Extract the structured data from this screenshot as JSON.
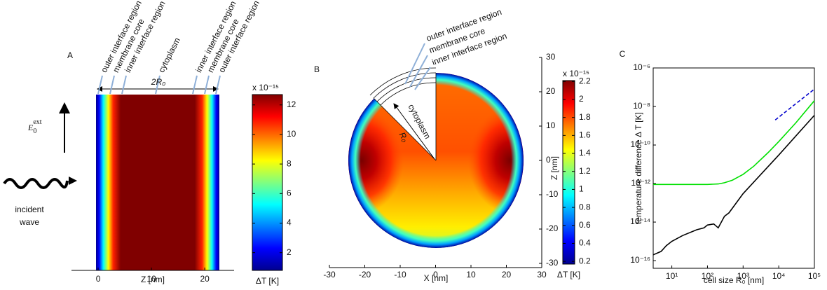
{
  "chart_data": [
    {
      "type": "slab",
      "label": "A",
      "xlabel": "Z [nm]",
      "xlim": [
        -5,
        25.5
      ],
      "xticks": [
        0,
        10,
        20
      ],
      "annotations": [
        "outer interface region",
        "membrane core",
        "inner interface region",
        "cytoplasm",
        "inner interface region",
        "membrane core",
        "outer interface region"
      ],
      "dimension_label": "2R₀",
      "field": {
        "symbol": "E",
        "sub": "0",
        "sup": "ext"
      },
      "wave_label": [
        "incident",
        "wave"
      ],
      "colorbar": {
        "label": "ΔT [K]",
        "multiplier": "x 10⁻¹⁵",
        "lim": [
          0.8,
          12.7
        ],
        "ticks": [
          2,
          4,
          6,
          8,
          10,
          12
        ]
      }
    },
    {
      "type": "disc",
      "label": "B",
      "xlabel": "X [nm]",
      "ylabel": "Z [nm]",
      "xlim": [
        -30,
        30
      ],
      "ylim": [
        -30,
        30
      ],
      "xticks": [
        -30,
        -20,
        -10,
        0,
        10,
        20,
        30
      ],
      "yticks": [
        -30,
        -20,
        -10,
        0,
        10,
        20,
        30
      ],
      "annotations": [
        "outer interface region",
        "membrane core",
        "inner interface region"
      ],
      "region_label": "cytoplasm",
      "radius_label": "R₀",
      "colorbar": {
        "label": "ΔT [K]",
        "multiplier": "x 10⁻¹⁵",
        "lim": [
          0.17,
          2.21
        ],
        "ticks": [
          0.2,
          0.4,
          0.6,
          0.8,
          1,
          1.2,
          1.4,
          1.6,
          1.8,
          2,
          2.2
        ]
      }
    },
    {
      "type": "line",
      "label": "C",
      "xlabel": "cell size R₀ [nm]",
      "ylabel": "temperature difference Δ T [K]",
      "log_x": true,
      "log_y": true,
      "xlim": [
        3,
        100000
      ],
      "ylim": [
        4e-17,
        1e-06
      ],
      "xticks": [
        {
          "value": 10,
          "label": "10¹"
        },
        {
          "value": 100,
          "label": "10²"
        },
        {
          "value": 1000,
          "label": "10³"
        },
        {
          "value": 10000,
          "label": "10⁴"
        },
        {
          "value": 100000,
          "label": "10⁵"
        }
      ],
      "yticks": [
        {
          "value": 1e-16,
          "label": "10⁻¹⁶"
        },
        {
          "value": 1e-14,
          "label": "10⁻¹⁴"
        },
        {
          "value": 1e-12,
          "label": "10⁻¹²"
        },
        {
          "value": 1e-10,
          "label": "10⁻¹⁰"
        },
        {
          "value": 1e-08,
          "label": "10⁻⁸"
        },
        {
          "value": 1e-06,
          "label": "10⁻⁶"
        }
      ],
      "series": [
        {
          "color": "#00e000",
          "dash": false,
          "x": [
            3,
            10,
            100,
            200,
            300,
            500,
            1000,
            2000,
            5000,
            10000,
            30000,
            100000
          ],
          "values": [
            9e-13,
            9e-13,
            9e-13,
            9.5e-13,
            1.1e-12,
            1.5e-12,
            3e-12,
            8e-12,
            4e-11,
            1.5e-10,
            1.4e-09,
            2e-08
          ]
        },
        {
          "color": "#000000",
          "dash": false,
          "x": [
            3,
            5,
            7,
            10,
            20,
            50,
            80,
            100,
            150,
            200,
            300,
            400,
            1000,
            10000,
            100000
          ],
          "values": [
            2e-16,
            3e-16,
            6e-16,
            1e-15,
            2e-15,
            4e-15,
            5e-15,
            7e-15,
            8e-15,
            5e-15,
            2e-14,
            3e-14,
            3e-13,
            3e-11,
            3.5e-09
          ]
        },
        {
          "color": "#0000cc",
          "dash": true,
          "x": [
            8000,
            100000
          ],
          "values": [
            2e-09,
            8e-08
          ]
        }
      ]
    }
  ]
}
